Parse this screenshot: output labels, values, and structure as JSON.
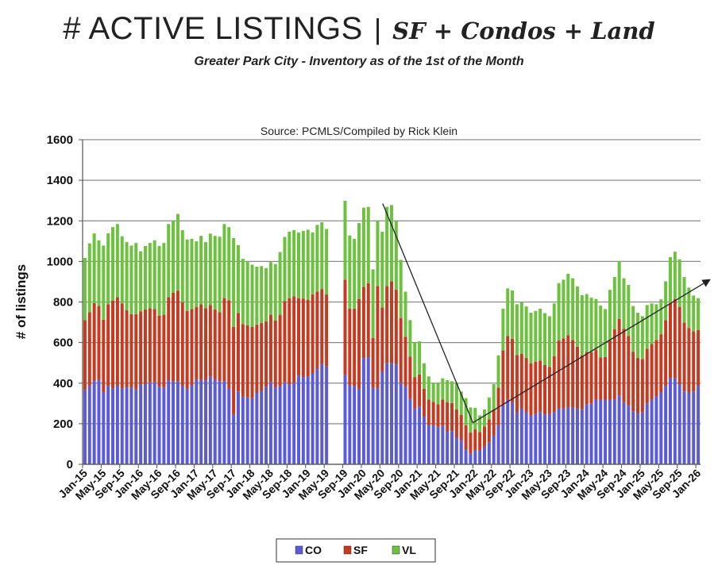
{
  "header": {
    "title_main": "# ACTIVE LISTINGS",
    "title_sep": "|",
    "title_sub": "SF + Condos + Land",
    "subtitle": "Greater Park City - Inventory as of the 1st of the Month"
  },
  "chart_data": {
    "type": "bar",
    "stacked": true,
    "title": "Source: PCMLS/Compiled by Rick Klein",
    "xlabel": "",
    "ylabel": "# of listings",
    "ylim": [
      0,
      1600
    ],
    "yticks": [
      0,
      200,
      400,
      600,
      800,
      1000,
      1200,
      1400,
      1600
    ],
    "grid": true,
    "legend_position": "bottom",
    "x_start": "Jan-15",
    "x_end": "Jan-26",
    "x_tick_every": 4,
    "x_tick_labels": [
      "Jan-15",
      "May-15",
      "Sep-15",
      "Jan-16",
      "May-16",
      "Sep-16",
      "Jan-17",
      "May-17",
      "Sep-17",
      "Jan-18",
      "May-18",
      "Sep-18",
      "Jan-19",
      "May-19",
      "Sep-19",
      "Jan-20",
      "May-20",
      "Sep-20",
      "Jan-21",
      "May-21",
      "Sep-21",
      "Jan-22",
      "May-22",
      "Sep-22",
      "Jan-23",
      "May-23",
      "Sep-23",
      "Jan-24",
      "May-24",
      "Sep-24",
      "Jan-25",
      "May-25",
      "Sep-25",
      "Jan-26"
    ],
    "series": [
      {
        "name": "CO",
        "color": "#5b5bd8",
        "values": [
          365,
          387,
          410,
          417,
          356,
          387,
          374,
          387,
          374,
          378,
          378,
          369,
          395,
          395,
          404,
          404,
          382,
          378,
          413,
          408,
          408,
          387,
          372,
          389,
          417,
          417,
          413,
          433,
          417,
          408,
          408,
          372,
          245,
          359,
          333,
          330,
          326,
          352,
          362,
          382,
          404,
          378,
          385,
          404,
          395,
          402,
          437,
          430,
          434,
          450,
          469,
          495,
          482,
          null,
          null,
          null,
          439,
          389,
          385,
          372,
          524,
          528,
          376,
          374,
          456,
          498,
          498,
          492,
          402,
          382,
          322,
          274,
          283,
          235,
          192,
          192,
          183,
          189,
          160,
          163,
          133,
          117,
          72,
          52,
          68,
          68,
          87,
          108,
          141,
          192,
          287,
          317,
          304,
          254,
          274,
          254,
          239,
          248,
          257,
          245,
          248,
          257,
          274,
          274,
          280,
          280,
          274,
          271,
          296,
          300,
          319,
          317,
          317,
          317,
          319,
          339,
          306,
          289,
          261,
          250,
          257,
          300,
          319,
          335,
          356,
          387,
          424,
          424,
          395,
          359,
          354,
          359,
          387
        ]
      },
      {
        "name": "SF",
        "color": "#c43b22",
        "values": [
          345,
          363,
          385,
          363,
          357,
          402,
          432,
          437,
          419,
          381,
          362,
          371,
          359,
          368,
          365,
          361,
          351,
          359,
          411,
          437,
          448,
          411,
          384,
          376,
          359,
          372,
          356,
          352,
          346,
          342,
          411,
          436,
          433,
          387,
          358,
          355,
          352,
          336,
          335,
          322,
          333,
          330,
          352,
          400,
          424,
          426,
          382,
          387,
          377,
          388,
          382,
          369,
          355,
          null,
          null,
          null,
          471,
          378,
          382,
          443,
          350,
          365,
          247,
          504,
          317,
          380,
          404,
          369,
          319,
          246,
          209,
          156,
          160,
          137,
          127,
          116,
          113,
          130,
          146,
          139,
          137,
          127,
          120,
          105,
          104,
          91,
          99,
          114,
          129,
          186,
          274,
          315,
          315,
          284,
          271,
          270,
          259,
          258,
          254,
          244,
          232,
          275,
          336,
          347,
          356,
          333,
          306,
          266,
          258,
          252,
          246,
          209,
          212,
          293,
          346,
          378,
          361,
          343,
          294,
          274,
          262,
          269,
          274,
          278,
          285,
          324,
          371,
          391,
          381,
          339,
          318,
          296,
          274
        ]
      },
      {
        "name": "VL",
        "color": "#6cc23e",
        "values": [
          307,
          339,
          343,
          324,
          365,
          349,
          363,
          360,
          331,
          336,
          338,
          351,
          296,
          313,
          322,
          339,
          343,
          354,
          360,
          354,
          378,
          356,
          352,
          346,
          323,
          337,
          326,
          352,
          363,
          372,
          365,
          361,
          437,
          334,
          322,
          315,
          306,
          286,
          280,
          263,
          260,
          279,
          309,
          317,
          328,
          326,
          324,
          333,
          345,
          305,
          329,
          329,
          323,
          null,
          null,
          null,
          389,
          361,
          344,
          374,
          391,
          376,
          338,
          321,
          374,
          391,
          376,
          338,
          287,
          223,
          180,
          170,
          163,
          126,
          114,
          94,
          106,
          105,
          109,
          107,
          132,
          115,
          134,
          123,
          106,
          82,
          84,
          107,
          125,
          159,
          206,
          235,
          238,
          251,
          255,
          254,
          249,
          250,
          256,
          256,
          250,
          261,
          283,
          289,
          303,
          304,
          297,
          297,
          285,
          269,
          250,
          256,
          236,
          250,
          258,
          283,
          250,
          252,
          225,
          223,
          211,
          216,
          200,
          176,
          172,
          191,
          226,
          233,
          234,
          225,
          199,
          177,
          158
        ]
      }
    ],
    "annotations": [
      {
        "type": "line",
        "from": {
          "month_index": 64.6,
          "value": 1285
        },
        "to": {
          "month_index": 84,
          "value": 205
        }
      },
      {
        "type": "arrow",
        "from": {
          "month_index": 84,
          "value": 205
        },
        "to": {
          "month_index": 135,
          "value": 910
        }
      }
    ]
  }
}
